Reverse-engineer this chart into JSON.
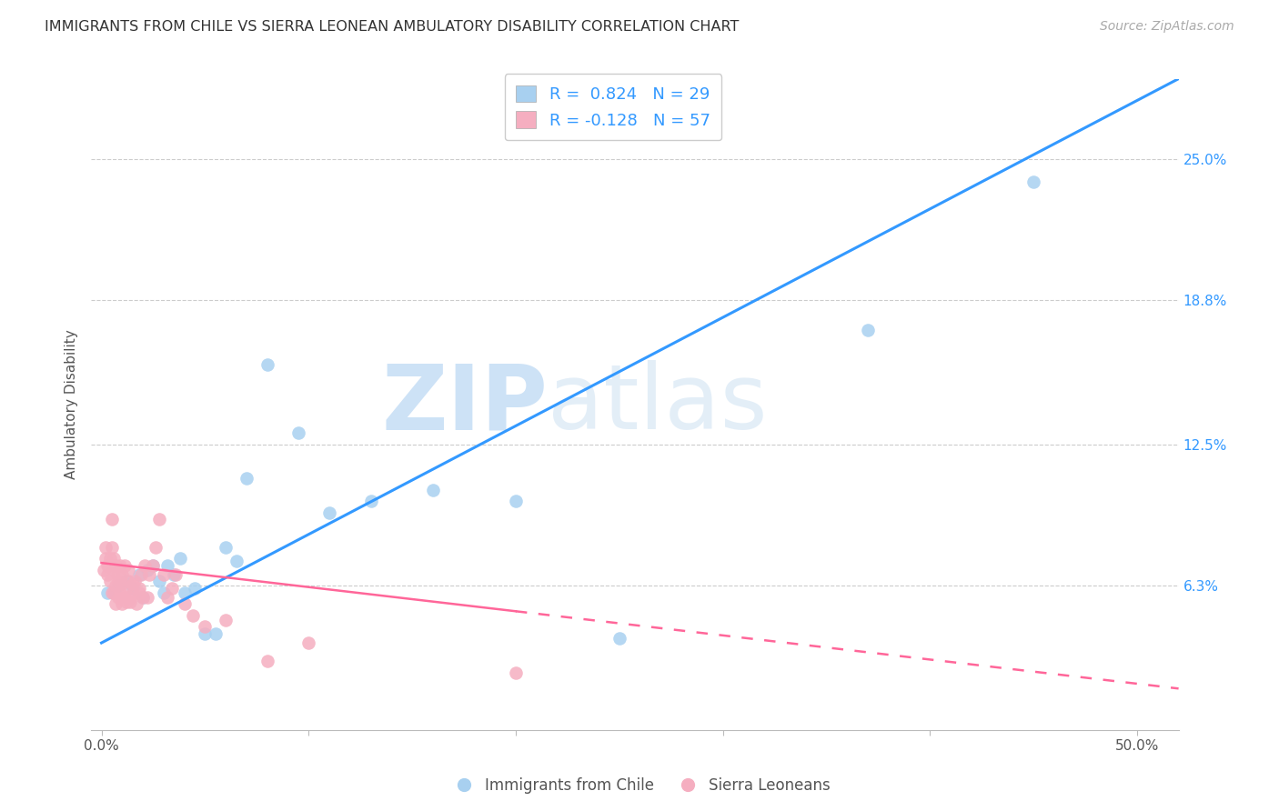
{
  "title": "IMMIGRANTS FROM CHILE VS SIERRA LEONEAN AMBULATORY DISABILITY CORRELATION CHART",
  "source": "Source: ZipAtlas.com",
  "ylabel": "Ambulatory Disability",
  "x_ticks": [
    0.0,
    0.1,
    0.2,
    0.3,
    0.4,
    0.5
  ],
  "x_tick_labels": [
    "0.0%",
    "",
    "",
    "",
    "",
    "50.0%"
  ],
  "y_ticks": [
    0.063,
    0.125,
    0.188,
    0.25
  ],
  "y_tick_labels": [
    "6.3%",
    "12.5%",
    "18.8%",
    "25.0%"
  ],
  "xlim": [
    -0.005,
    0.52
  ],
  "ylim": [
    0.0,
    0.285
  ],
  "legend_label_blue": "Immigrants from Chile",
  "legend_label_pink": "Sierra Leoneans",
  "blue_color": "#a8d0f0",
  "pink_color": "#f5aec0",
  "blue_line_color": "#3399ff",
  "pink_line_color": "#ff6699",
  "watermark_zip": "ZIP",
  "watermark_atlas": "atlas",
  "blue_scatter_x": [
    0.003,
    0.008,
    0.012,
    0.015,
    0.018,
    0.02,
    0.022,
    0.025,
    0.028,
    0.03,
    0.032,
    0.035,
    0.038,
    0.04,
    0.045,
    0.05,
    0.055,
    0.06,
    0.065,
    0.07,
    0.08,
    0.095,
    0.11,
    0.13,
    0.16,
    0.2,
    0.25,
    0.37,
    0.45
  ],
  "blue_scatter_y": [
    0.06,
    0.063,
    0.065,
    0.062,
    0.068,
    0.058,
    0.07,
    0.072,
    0.065,
    0.06,
    0.072,
    0.068,
    0.075,
    0.06,
    0.062,
    0.042,
    0.042,
    0.08,
    0.074,
    0.11,
    0.16,
    0.13,
    0.095,
    0.1,
    0.105,
    0.1,
    0.04,
    0.175,
    0.24
  ],
  "pink_scatter_x": [
    0.001,
    0.002,
    0.002,
    0.003,
    0.003,
    0.004,
    0.004,
    0.005,
    0.005,
    0.005,
    0.006,
    0.006,
    0.006,
    0.007,
    0.007,
    0.007,
    0.008,
    0.008,
    0.008,
    0.009,
    0.009,
    0.01,
    0.01,
    0.01,
    0.011,
    0.011,
    0.012,
    0.012,
    0.013,
    0.013,
    0.014,
    0.014,
    0.015,
    0.015,
    0.016,
    0.017,
    0.018,
    0.018,
    0.019,
    0.02,
    0.021,
    0.022,
    0.023,
    0.025,
    0.026,
    0.028,
    0.03,
    0.032,
    0.034,
    0.036,
    0.04,
    0.044,
    0.05,
    0.06,
    0.08,
    0.1,
    0.2
  ],
  "pink_scatter_y": [
    0.07,
    0.075,
    0.08,
    0.068,
    0.072,
    0.065,
    0.075,
    0.08,
    0.092,
    0.06,
    0.06,
    0.07,
    0.075,
    0.055,
    0.063,
    0.072,
    0.058,
    0.065,
    0.068,
    0.06,
    0.072,
    0.055,
    0.064,
    0.068,
    0.058,
    0.072,
    0.056,
    0.062,
    0.065,
    0.07,
    0.056,
    0.058,
    0.06,
    0.064,
    0.065,
    0.055,
    0.06,
    0.062,
    0.068,
    0.058,
    0.072,
    0.058,
    0.068,
    0.072,
    0.08,
    0.092,
    0.068,
    0.058,
    0.062,
    0.068,
    0.055,
    0.05,
    0.045,
    0.048,
    0.03,
    0.038,
    0.025
  ]
}
